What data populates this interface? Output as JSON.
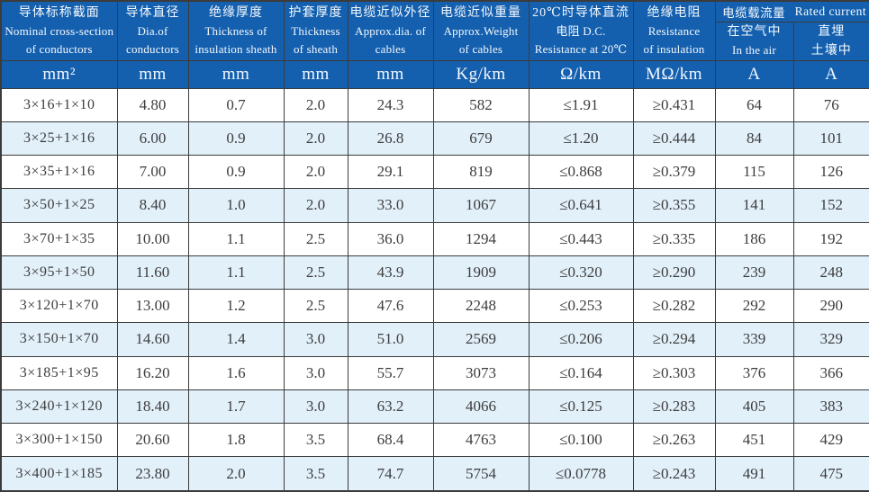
{
  "colors": {
    "header_bg": "#1560ae",
    "header_text": "#f3f8fe",
    "row_bg": "#ffffff",
    "row_alt_bg": "#e2f0fa",
    "border": "#3b3b3b",
    "data_text": "#3d3d3d"
  },
  "chart_data": {
    "type": "table",
    "columns": [
      {
        "lines": [
          "导体标称截面",
          "Nominal cross-section",
          "of conductors"
        ]
      },
      {
        "lines": [
          "导体直径",
          "Dia.of",
          "conductors"
        ]
      },
      {
        "lines": [
          "绝缘厚度",
          "Thickness of",
          "insulation sheath"
        ]
      },
      {
        "lines": [
          "护套厚度",
          "Thickness",
          "of sheath"
        ]
      },
      {
        "lines": [
          "电缆近似外径",
          "Approx.dia. of",
          "cables"
        ]
      },
      {
        "lines": [
          "电缆近似重量",
          "Approx.Weight",
          "of cables"
        ]
      },
      {
        "lines": [
          "20℃时导体直流",
          "电阻 D.C.",
          "Resistance at 20℃"
        ]
      },
      {
        "lines": [
          "绝缘电阻",
          "Resistance",
          "of insulation"
        ]
      }
    ],
    "rated_current_group": {
      "zh": "电缆载流量",
      "en": "Rated current",
      "sub_columns": [
        {
          "lines": [
            "在空气中",
            "In the air"
          ]
        },
        {
          "lines": [
            "直埋",
            "土壤中"
          ]
        }
      ]
    },
    "units": [
      "mm²",
      "mm",
      "mm",
      "mm",
      "mm",
      "Kg/km",
      "Ω/km",
      "MΩ/km",
      "A",
      "A"
    ],
    "rows": [
      [
        "3×16+1×10",
        "4.80",
        "0.7",
        "2.0",
        "24.3",
        "582",
        "≤1.91",
        "≥0.431",
        "64",
        "76"
      ],
      [
        "3×25+1×16",
        "6.00",
        "0.9",
        "2.0",
        "26.8",
        "679",
        "≤1.20",
        "≥0.444",
        "84",
        "101"
      ],
      [
        "3×35+1×16",
        "7.00",
        "0.9",
        "2.0",
        "29.1",
        "819",
        "≤0.868",
        "≥0.379",
        "115",
        "126"
      ],
      [
        "3×50+1×25",
        "8.40",
        "1.0",
        "2.0",
        "33.0",
        "1067",
        "≤0.641",
        "≥0.355",
        "141",
        "152"
      ],
      [
        "3×70+1×35",
        "10.00",
        "1.1",
        "2.5",
        "36.0",
        "1294",
        "≤0.443",
        "≥0.335",
        "186",
        "192"
      ],
      [
        "3×95+1×50",
        "11.60",
        "1.1",
        "2.5",
        "43.9",
        "1909",
        "≤0.320",
        "≥0.290",
        "239",
        "248"
      ],
      [
        "3×120+1×70",
        "13.00",
        "1.2",
        "2.5",
        "47.6",
        "2248",
        "≤0.253",
        "≥0.282",
        "292",
        "290"
      ],
      [
        "3×150+1×70",
        "14.60",
        "1.4",
        "3.0",
        "51.0",
        "2569",
        "≤0.206",
        "≥0.294",
        "339",
        "329"
      ],
      [
        "3×185+1×95",
        "16.20",
        "1.6",
        "3.0",
        "55.7",
        "3073",
        "≤0.164",
        "≥0.303",
        "376",
        "366"
      ],
      [
        "3×240+1×120",
        "18.40",
        "1.7",
        "3.0",
        "63.2",
        "4066",
        "≤0.125",
        "≥0.283",
        "405",
        "383"
      ],
      [
        "3×300+1×150",
        "20.60",
        "1.8",
        "3.5",
        "68.4",
        "4763",
        "≤0.100",
        "≥0.263",
        "451",
        "429"
      ],
      [
        "3×400+1×185",
        "23.80",
        "2.0",
        "3.5",
        "74.7",
        "5754",
        "≤0.0778",
        "≥0.243",
        "491",
        "475"
      ]
    ]
  }
}
